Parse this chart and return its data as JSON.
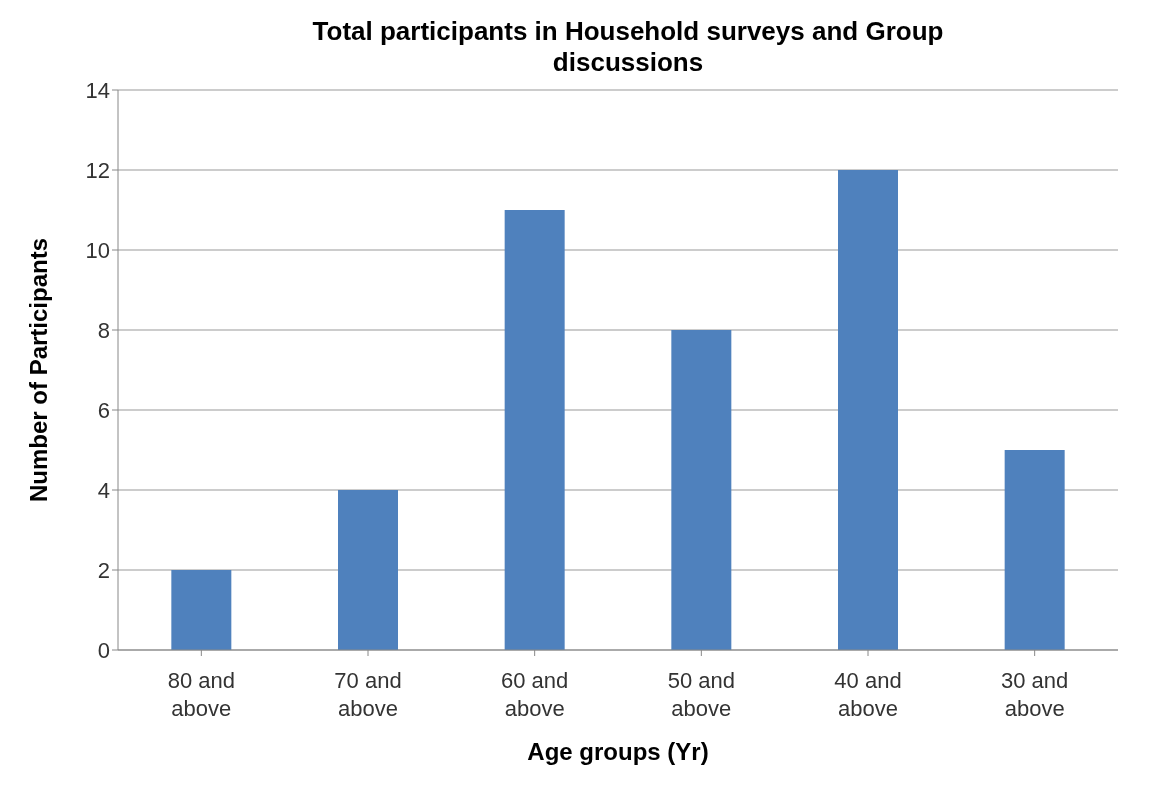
{
  "chart_data": {
    "type": "bar",
    "title": "Total participants in Household surveys and Group discussions",
    "xlabel": "Age groups (Yr)",
    "ylabel": "Number of Participants",
    "categories": [
      "80 and above",
      "70 and above",
      "60 and above",
      "50 and above",
      "40 and above",
      "30 and above"
    ],
    "values": [
      2,
      4,
      11,
      8,
      12,
      5
    ],
    "color": "#4f81bd",
    "ylim": [
      0,
      14
    ],
    "yticks": [
      0,
      2,
      4,
      6,
      8,
      10,
      12,
      14
    ],
    "grid": "y"
  }
}
